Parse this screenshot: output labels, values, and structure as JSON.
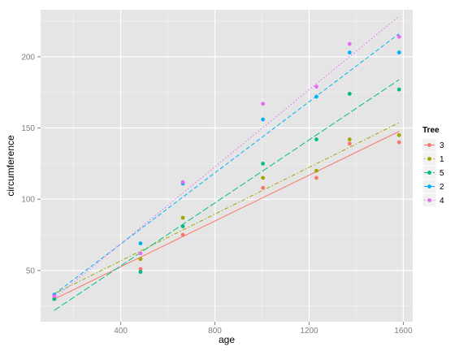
{
  "chart_data": {
    "type": "scatter",
    "xlabel": "age",
    "ylabel": "circumference",
    "xlim": [
      60,
      1640
    ],
    "ylim": [
      14,
      233
    ],
    "xticks": [
      400,
      800,
      1200,
      1600
    ],
    "yticks": [
      50,
      100,
      150,
      200
    ],
    "grid": true,
    "legend": {
      "title": "Tree",
      "placement": "right"
    },
    "x": [
      118,
      484,
      664,
      1004,
      1231,
      1372,
      1582
    ],
    "series": [
      {
        "name": "3",
        "color": "#F8766D",
        "linetype": "solid",
        "values": [
          30,
          51,
          75,
          108,
          115,
          139,
          140
        ],
        "fit": [
          29.9,
          147.6
        ]
      },
      {
        "name": "1",
        "color": "#A3A500",
        "linetype": "dotdash",
        "values": [
          30,
          58,
          87,
          115,
          120,
          142,
          145
        ],
        "fit": [
          33.6,
          153.7
        ]
      },
      {
        "name": "5",
        "color": "#00BF7D",
        "linetype": "dashlong",
        "values": [
          30,
          49,
          81,
          125,
          142,
          174,
          177
        ],
        "fit": [
          22.0,
          183.9
        ]
      },
      {
        "name": "2",
        "color": "#00B0F6",
        "linetype": "dashed",
        "values": [
          33,
          69,
          111,
          156,
          172,
          203,
          203
        ],
        "fit": [
          33.3,
          216.2
        ]
      },
      {
        "name": "4",
        "color": "#E76BF3",
        "linetype": "dotted",
        "values": [
          32,
          62,
          112,
          167,
          179,
          209,
          214
        ],
        "fit": [
          30.5,
          228.5
        ]
      }
    ]
  }
}
